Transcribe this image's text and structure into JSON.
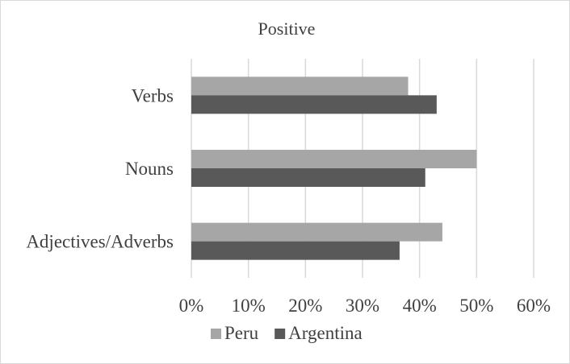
{
  "chart_data": {
    "type": "bar",
    "orientation": "horizontal",
    "title": "Positive",
    "categories": [
      "Verbs",
      "Nouns",
      "Adjectives/Adverbs"
    ],
    "series": [
      {
        "name": "Peru",
        "color": "#a6a6a6",
        "values": [
          0.38,
          0.5,
          0.44
        ]
      },
      {
        "name": "Argentina",
        "color": "#595959",
        "values": [
          0.43,
          0.41,
          0.365
        ]
      }
    ],
    "xlim": [
      0,
      0.6
    ],
    "xticks": [
      0,
      0.1,
      0.2,
      0.3,
      0.4,
      0.5,
      0.6
    ],
    "xtick_labels": [
      "0%",
      "10%",
      "20%",
      "30%",
      "40%",
      "50%",
      "60%"
    ],
    "grid": true,
    "legend_position": "bottom",
    "gridline_color": "#d9d9d9"
  }
}
